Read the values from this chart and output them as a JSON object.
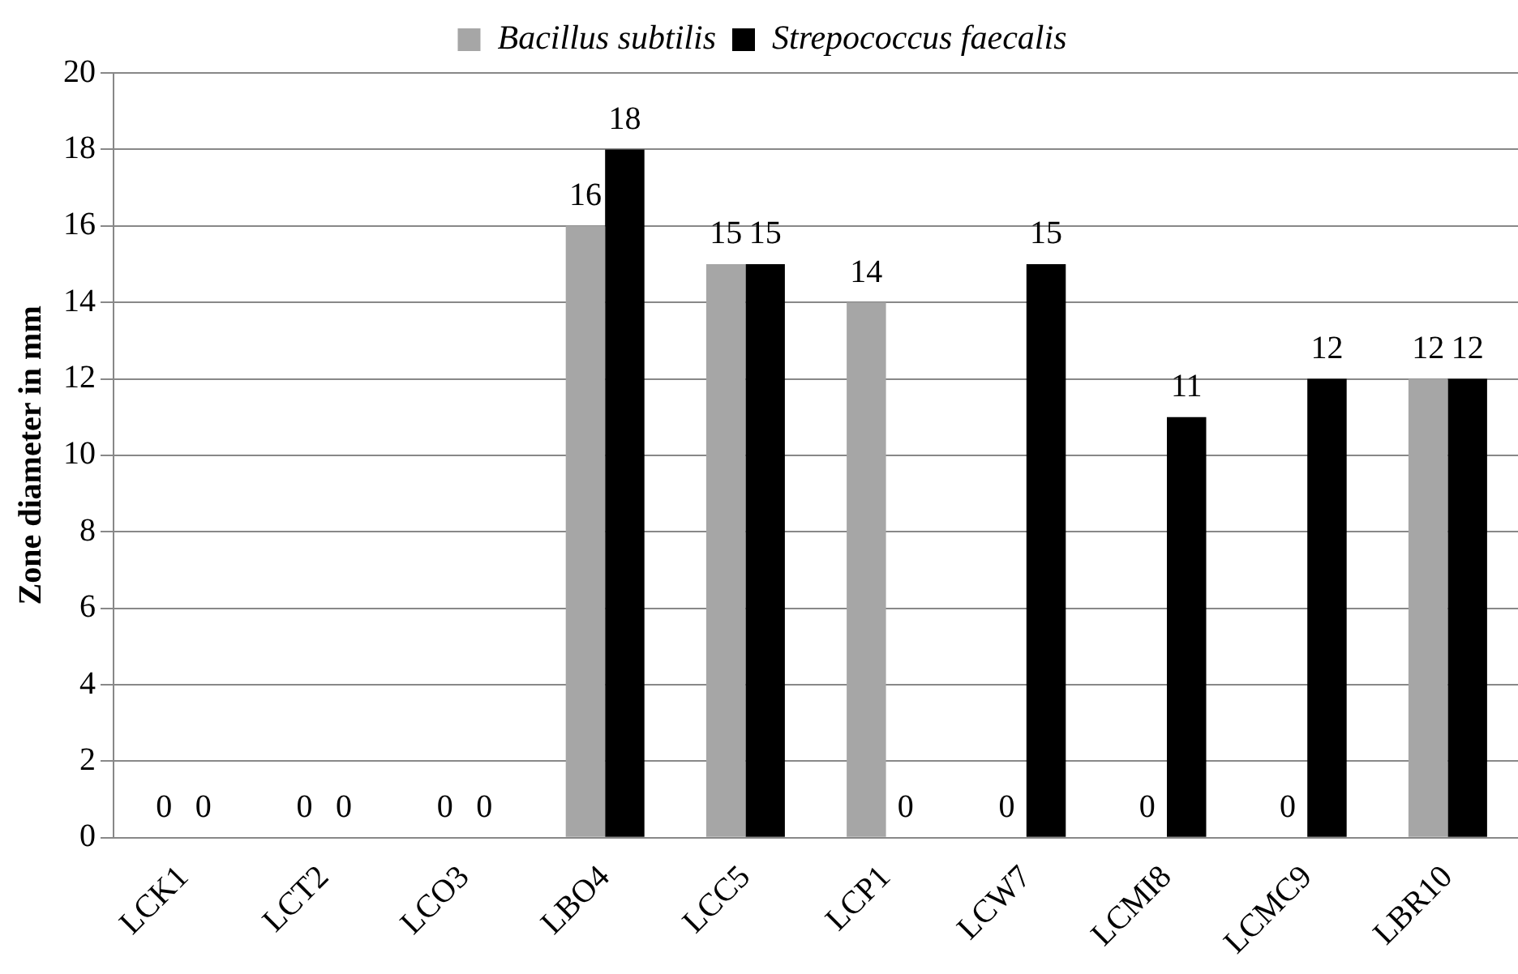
{
  "chart_data": {
    "type": "bar",
    "ylabel": "Zone diameter in mm",
    "categories": [
      "LCK1",
      "LCT2",
      "LCO3",
      "LBO4",
      "LCC5",
      "LCP1",
      "LCW7",
      "LCMI8",
      "LCMC9",
      "LBR10"
    ],
    "series": [
      {
        "name": "Bacillus subtilis",
        "color": "#a6a6a6",
        "values": [
          0,
          0,
          0,
          16,
          15,
          14,
          0,
          0,
          0,
          12
        ]
      },
      {
        "name": "Strepococcus faecalis",
        "color": "#000000",
        "values": [
          0,
          0,
          0,
          18,
          15,
          0,
          15,
          11,
          12,
          12
        ]
      }
    ],
    "ylim": [
      0,
      20
    ],
    "yticks": [
      0,
      2,
      4,
      6,
      8,
      10,
      12,
      14,
      16,
      18,
      20
    ],
    "grid": "y",
    "legend": "top",
    "data_labels": true
  }
}
